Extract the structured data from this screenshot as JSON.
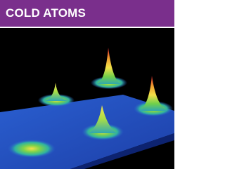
{
  "header": {
    "title": "COLD ATOMS"
  }
}
